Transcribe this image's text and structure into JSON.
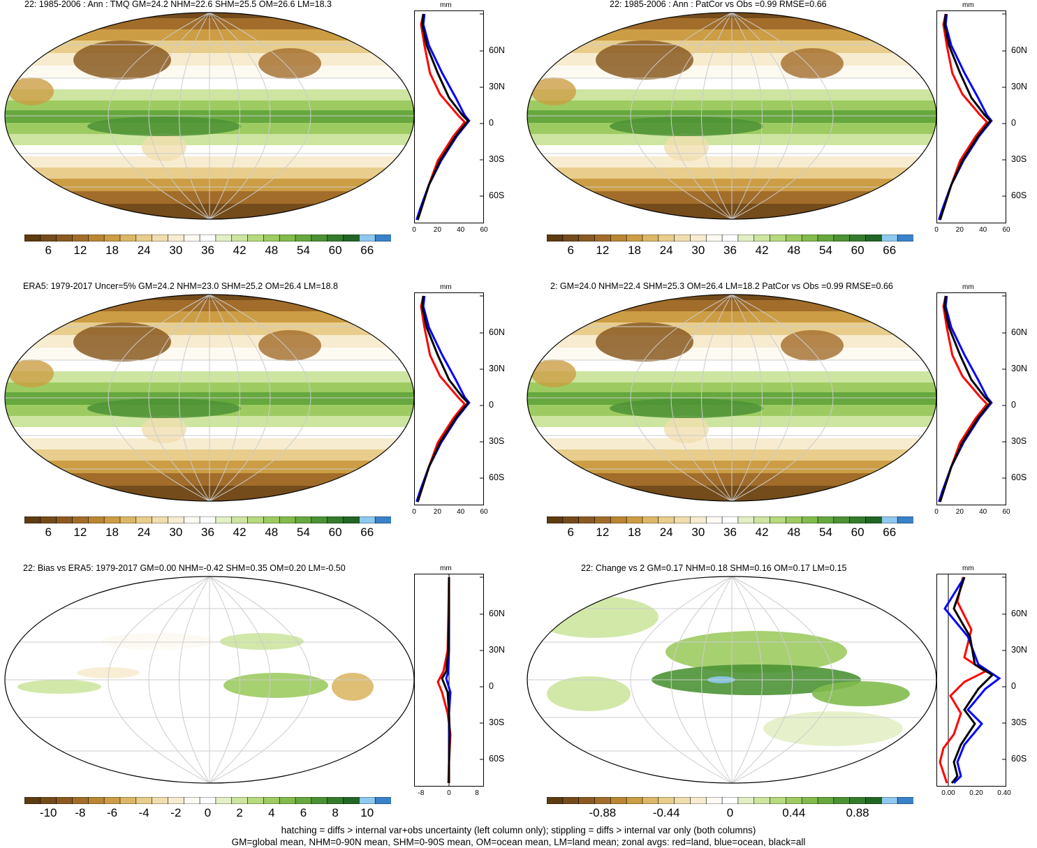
{
  "panels": [
    {
      "title": "22: 1985-2006 : Ann : TMQ GM=24.2 NHM=22.6 SHM=25.5 OM=26.6 LM=18.3",
      "colorbar_labels": [
        "6",
        "12",
        "18",
        "24",
        "30",
        "36",
        "42",
        "48",
        "54",
        "60",
        "66"
      ],
      "zonal": {
        "unit": "mm",
        "xticks": [
          "0",
          "20",
          "40",
          "60"
        ],
        "yticks": [
          "60N",
          "30N",
          "0",
          "30S",
          "60S"
        ]
      }
    },
    {
      "title": "22: 1985-2006 : Ann : PatCor vs Obs =0.99 RMSE=0.66",
      "colorbar_labels": [
        "6",
        "12",
        "18",
        "24",
        "30",
        "36",
        "42",
        "48",
        "54",
        "60",
        "66"
      ],
      "zonal": {
        "unit": "mm",
        "xticks": [
          "0",
          "20",
          "40",
          "60"
        ],
        "yticks": [
          "60N",
          "30N",
          "0",
          "30S",
          "60S"
        ]
      }
    },
    {
      "title": "ERA5: 1979-2017 Uncer=5% GM=24.2 NHM=23.0 SHM=25.2 OM=26.4 LM=18.8",
      "colorbar_labels": [
        "6",
        "12",
        "18",
        "24",
        "30",
        "36",
        "42",
        "48",
        "54",
        "60",
        "66"
      ],
      "zonal": {
        "unit": "mm",
        "xticks": [
          "0",
          "20",
          "40",
          "60"
        ],
        "yticks": [
          "60N",
          "30N",
          "0",
          "30S",
          "60S"
        ]
      }
    },
    {
      "title": "2: GM=24.0 NHM=22.4 SHM=25.3 OM=26.4 LM=18.2 PatCor vs Obs =0.99 RMSE=0.66",
      "colorbar_labels": [
        "6",
        "12",
        "18",
        "24",
        "30",
        "36",
        "42",
        "48",
        "54",
        "60",
        "66"
      ],
      "zonal": {
        "unit": "mm",
        "xticks": [
          "0",
          "20",
          "40",
          "60"
        ],
        "yticks": [
          "60N",
          "30N",
          "0",
          "30S",
          "60S"
        ]
      }
    },
    {
      "title": "22: Bias vs ERA5: 1979-2017 GM=0.00 NHM=-0.42 SHM=0.35 OM=0.20 LM=-0.50",
      "colorbar_labels": [
        "-10",
        "-8",
        "-6",
        "-4",
        "-2",
        "0",
        "2",
        "4",
        "6",
        "8",
        "10"
      ],
      "zonal": {
        "unit": "mm",
        "xticks": [
          "-8",
          "0",
          "8"
        ],
        "yticks": [
          "60N",
          "30N",
          "0",
          "30S",
          "60S"
        ]
      }
    },
    {
      "title": "22: Change vs 2 GM=0.17 NHM=0.18 SHM=0.16 OM=0.17 LM=0.15",
      "colorbar_labels": [
        "-0.88",
        "-0.44",
        "0",
        "0.44",
        "0.88"
      ],
      "zonal": {
        "unit": "mm",
        "xticks": [
          "0.00",
          "0.20",
          "0.40"
        ],
        "yticks": [
          "60N",
          "30N",
          "0",
          "30S",
          "60S"
        ]
      }
    }
  ],
  "footer": {
    "line1": "hatching = diffs > internal var+obs uncertainty (left column only); stippling = diffs > internal var only (both columns)",
    "line2": "GM=global mean, NHM=0-90N mean, SHM=0-90S mean, OM=ocean mean, LM=land mean; zonal avgs: red=land, blue=ocean, black=all"
  },
  "colors": {
    "brown_green": [
      "#5e3c12",
      "#744b1a",
      "#8a5a22",
      "#a26d2b",
      "#b98634",
      "#cc9d44",
      "#dcb767",
      "#e8cd8c",
      "#f1deaf",
      "#f7ecd0",
      "#fdfaf2",
      "#ffffff",
      "#e3f0c5",
      "#cde5a0",
      "#b6da7e",
      "#9dcb62",
      "#82bb4c",
      "#66a83e",
      "#4c9235",
      "#357b2c",
      "#226625",
      "#8ec9ef",
      "#3a82c8"
    ],
    "zonal_land": "#ff0000",
    "zonal_ocean": "#0000ff",
    "zonal_all": "#000000"
  }
}
